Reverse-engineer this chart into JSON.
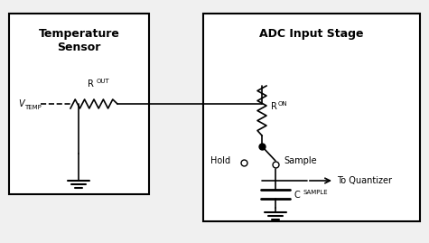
{
  "bg_color": "#f0f0f0",
  "box_color": "#ffffff",
  "line_color": "#000000",
  "title_temp_sensor": "Temperature\nSensor",
  "title_adc": "ADC Input Stage",
  "label_vtemp": "V",
  "label_vtemp_sub": "TEMP",
  "label_rout": "R",
  "label_rout_sub": "OUT",
  "label_ron": "R",
  "label_ron_sub": "ON",
  "label_hold": "Hold",
  "label_sample": "Sample",
  "label_to_quantizer": "To Quantizer",
  "label_csample": "C",
  "label_csample_sub": "SAMPLE"
}
